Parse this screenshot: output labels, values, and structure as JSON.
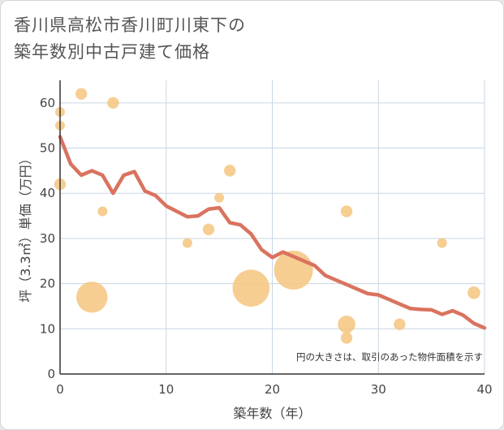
{
  "title_line1": "香川県高松市香川町川東下の",
  "title_line2": "築年数別中古戸建て価格",
  "chart_data": {
    "type": "scatter",
    "title": "香川県高松市香川町川東下の築年数別中古戸建て価格",
    "xlabel": "築年数（年）",
    "ylabel": "坪（3.3㎡）単価（万円）",
    "xlim": [
      0,
      40
    ],
    "ylim": [
      0,
      65
    ],
    "xticks": [
      "0",
      "10",
      "20",
      "30",
      "40"
    ],
    "yticks": [
      "0",
      "10",
      "20",
      "30",
      "40",
      "50",
      "60"
    ],
    "grid": true,
    "note": "円の大きさは、取引のあった物件面積を示す",
    "bubble_color": "#f5c57f",
    "line_color": "#d9735f",
    "points": [
      {
        "x": 0,
        "y": 58,
        "size": 1
      },
      {
        "x": 0,
        "y": 55,
        "size": 1
      },
      {
        "x": 0,
        "y": 42,
        "size": 1.2
      },
      {
        "x": 2,
        "y": 62,
        "size": 1.2
      },
      {
        "x": 3,
        "y": 17,
        "size": 3.2
      },
      {
        "x": 4,
        "y": 36,
        "size": 1
      },
      {
        "x": 5,
        "y": 60,
        "size": 1.2
      },
      {
        "x": 12,
        "y": 29,
        "size": 1
      },
      {
        "x": 14,
        "y": 32,
        "size": 1.2
      },
      {
        "x": 15,
        "y": 39,
        "size": 1
      },
      {
        "x": 16,
        "y": 45,
        "size": 1.2
      },
      {
        "x": 18,
        "y": 19,
        "size": 3.8
      },
      {
        "x": 22,
        "y": 23,
        "size": 4
      },
      {
        "x": 27,
        "y": 36,
        "size": 1.2
      },
      {
        "x": 27,
        "y": 11,
        "size": 1.8
      },
      {
        "x": 27,
        "y": 8,
        "size": 1.2
      },
      {
        "x": 32,
        "y": 11,
        "size": 1.2
      },
      {
        "x": 36,
        "y": 29,
        "size": 1
      },
      {
        "x": 39,
        "y": 18,
        "size": 1.3
      }
    ],
    "trend": {
      "x": [
        0,
        1,
        2,
        3,
        4,
        5,
        6,
        7,
        8,
        9,
        10,
        11,
        12,
        13,
        14,
        15,
        16,
        17,
        18,
        19,
        20,
        21,
        22,
        23,
        24,
        25,
        26,
        27,
        28,
        29,
        30,
        31,
        32,
        33,
        34,
        35,
        36,
        37,
        38,
        39,
        40
      ],
      "y": [
        52.5,
        46.5,
        44,
        45,
        44,
        40,
        44,
        44.8,
        40.5,
        39.5,
        37.2,
        36,
        34.8,
        35,
        36.5,
        36.8,
        33.5,
        33,
        31,
        27.5,
        25.8,
        27,
        26,
        25,
        24,
        21.8,
        20.8,
        19.8,
        18.8,
        17.8,
        17.5,
        16.5,
        15.5,
        14.5,
        14.3,
        14.2,
        13.2,
        14,
        13,
        11.2,
        10.2
      ]
    }
  }
}
